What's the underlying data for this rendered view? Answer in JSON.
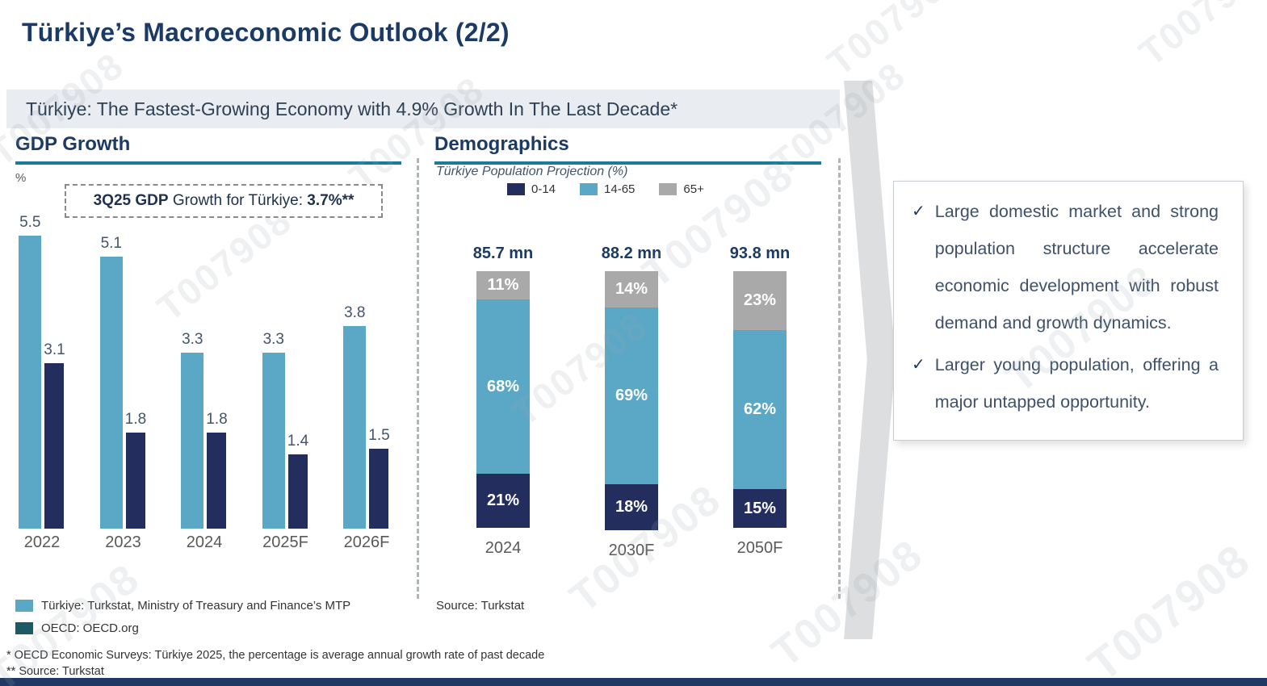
{
  "slide": {
    "title": "Türkiye’s Macroeconomic Outlook (2/2)",
    "banner": "Türkiye: The Fastest-Growing Economy with 4.9% Growth In The Last Decade*",
    "watermark": "T007908",
    "bottom_bar_color": "#1F3864"
  },
  "gdp_section": {
    "heading": "GDP Growth",
    "unit_label": "%",
    "callout": {
      "prefix_bold": "3Q25 GDP",
      "middle": " Growth for Türkiye: ",
      "value_bold": "3.7%**"
    },
    "legend": [
      {
        "label": "Türkiye: Turkstat, Ministry of Treasury and Finance’s MTP",
        "color": "#5BA8C6"
      },
      {
        "label": "OECD: OECD.org",
        "color": "#1E5A66"
      }
    ]
  },
  "demographics_section": {
    "heading": "Demographics",
    "subtitle": "Türkiye Population Projection (%)",
    "source": "Source: Turkstat"
  },
  "insights": {
    "bullet_glyph": "✓",
    "items": [
      "Large domestic market and strong population structure accelerate economic development with robust demand and growth dynamics.",
      "Larger young population, offering a major untapped opportunity."
    ]
  },
  "footnotes": [
    "* OECD Economic Surveys: Türkiye 2025, the percentage is average annual growth rate of past decade",
    "** Source: Turkstat"
  ],
  "chart_data": [
    {
      "type": "bar",
      "title": "GDP Growth",
      "xlabel": "",
      "ylabel": "%",
      "ylim": [
        0,
        6
      ],
      "grid": false,
      "value_labels": true,
      "categories": [
        "2022",
        "2023",
        "2024",
        "2025F",
        "2026F"
      ],
      "series": [
        {
          "name": "Türkiye",
          "key": "turkiye",
          "color": "#5BA8C6",
          "values": [
            5.5,
            5.1,
            3.3,
            3.3,
            3.8
          ]
        },
        {
          "name": "OECD",
          "key": "oecd",
          "color": "#242E5E",
          "values": [
            3.1,
            1.8,
            1.8,
            1.4,
            1.5
          ]
        }
      ]
    },
    {
      "type": "bar",
      "stacked": true,
      "title": "Demographics",
      "subtitle": "Türkiye Population Projection (%)",
      "ylim": [
        0,
        100
      ],
      "grid": false,
      "legend_position": "top",
      "categories": [
        "2024",
        "2030F",
        "2050F"
      ],
      "totals": [
        "85.7 mn",
        "88.2 mn",
        "93.8 mn"
      ],
      "series": [
        {
          "name": "0-14",
          "key": "age-0-14",
          "color": "#242E5E",
          "values": [
            21,
            18,
            15
          ]
        },
        {
          "name": "14-65",
          "key": "age-14-65",
          "color": "#5BA8C6",
          "values": [
            68,
            69,
            62
          ]
        },
        {
          "name": "65+",
          "key": "age-65-plus",
          "color": "#A9A9A9",
          "values": [
            11,
            14,
            23
          ]
        }
      ]
    }
  ]
}
